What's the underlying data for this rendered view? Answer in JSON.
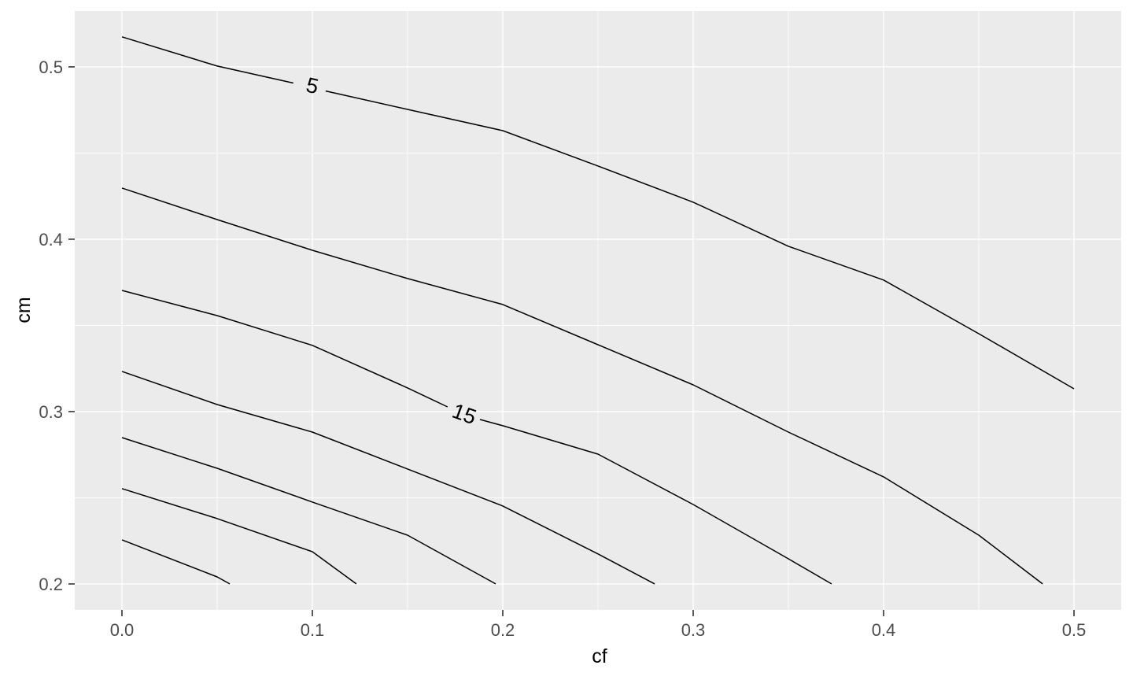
{
  "figure": {
    "background": "#FFFFFF",
    "panel_fill": "#EBEBEB",
    "grid_color": "#FFFFFF",
    "contour_color": "#000000",
    "tick_mark_color": "#333333",
    "tick_label_color": "#4D4D4D",
    "axis_title_color": "#000000"
  },
  "chart_data": {
    "type": "line",
    "subtype": "contour",
    "title": "",
    "xlabel": "cf",
    "ylabel": "cm",
    "xlim": [
      -0.0248,
      0.5248
    ],
    "ylim": [
      0.1849,
      0.5324
    ],
    "grid": "on",
    "legend": "none",
    "x_ticks": [
      {
        "v": 0.0,
        "label": "0.0"
      },
      {
        "v": 0.1,
        "label": "0.1"
      },
      {
        "v": 0.2,
        "label": "0.2"
      },
      {
        "v": 0.3,
        "label": "0.3"
      },
      {
        "v": 0.4,
        "label": "0.4"
      },
      {
        "v": 0.5,
        "label": "0.5"
      }
    ],
    "y_ticks": [
      {
        "v": 0.2,
        "label": "0.2"
      },
      {
        "v": 0.3,
        "label": "0.3"
      },
      {
        "v": 0.4,
        "label": "0.4"
      },
      {
        "v": 0.5,
        "label": "0.5"
      }
    ],
    "x_minor_ticks": [
      0.05,
      0.15,
      0.25,
      0.35,
      0.45
    ],
    "y_minor_ticks": [
      0.25,
      0.35,
      0.45
    ],
    "contours": [
      {
        "level": 5,
        "label": {
          "text": "5",
          "x": 0.1,
          "y": 0.489,
          "angle": 13
        },
        "paths": [
          [
            [
              0.0,
              0.5174
            ],
            [
              0.05,
              0.5005
            ],
            [
              0.09,
              0.4906
            ]
          ],
          [
            [
              0.107,
              0.486
            ],
            [
              0.15,
              0.4753
            ],
            [
              0.2,
              0.463
            ],
            [
              0.25,
              0.4425
            ],
            [
              0.3,
              0.4215
            ],
            [
              0.35,
              0.3959
            ],
            [
              0.4,
              0.3763
            ],
            [
              0.45,
              0.3452
            ],
            [
              0.5,
              0.3132
            ]
          ]
        ]
      },
      {
        "level": 10,
        "label": null,
        "paths": [
          [
            [
              0.0,
              0.4297
            ],
            [
              0.05,
              0.4114
            ],
            [
              0.1,
              0.3936
            ],
            [
              0.15,
              0.3772
            ],
            [
              0.2,
              0.3621
            ],
            [
              0.25,
              0.3388
            ],
            [
              0.3,
              0.3155
            ],
            [
              0.35,
              0.2881
            ],
            [
              0.4,
              0.2621
            ],
            [
              0.45,
              0.2283
            ],
            [
              0.4835,
              0.2
            ]
          ]
        ]
      },
      {
        "level": 15,
        "label": {
          "text": "15",
          "x": 0.1798,
          "y": 0.2986,
          "angle": 20
        },
        "paths": [
          [
            [
              0.0,
              0.3703
            ],
            [
              0.05,
              0.3557
            ],
            [
              0.1,
              0.3384
            ],
            [
              0.15,
              0.3137
            ],
            [
              0.171,
              0.3027
            ]
          ],
          [
            [
              0.188,
              0.2954
            ],
            [
              0.2,
              0.2918
            ],
            [
              0.25,
              0.2753
            ],
            [
              0.3,
              0.2461
            ],
            [
              0.35,
              0.2146
            ],
            [
              0.3727,
              0.2
            ]
          ]
        ]
      },
      {
        "level": 20,
        "label": null,
        "paths": [
          [
            [
              0.0,
              0.3233
            ],
            [
              0.05,
              0.3041
            ],
            [
              0.1,
              0.2881
            ],
            [
              0.15,
              0.2667
            ],
            [
              0.2,
              0.2452
            ],
            [
              0.25,
              0.2174
            ],
            [
              0.2798,
              0.2
            ]
          ]
        ]
      },
      {
        "level": 25,
        "label": null,
        "paths": [
          [
            [
              0.0,
              0.2849
            ],
            [
              0.05,
              0.2671
            ],
            [
              0.1,
              0.2475
            ],
            [
              0.15,
              0.2283
            ],
            [
              0.1963,
              0.2
            ]
          ]
        ]
      },
      {
        "level": 30,
        "label": null,
        "paths": [
          [
            [
              0.0,
              0.2553
            ],
            [
              0.05,
              0.2379
            ],
            [
              0.1,
              0.2187
            ],
            [
              0.1231,
              0.2
            ]
          ]
        ]
      },
      {
        "level": 35,
        "label": null,
        "paths": [
          [
            [
              0.0,
              0.2256
            ],
            [
              0.05,
              0.2041
            ],
            [
              0.0566,
              0.2
            ]
          ]
        ]
      }
    ]
  }
}
